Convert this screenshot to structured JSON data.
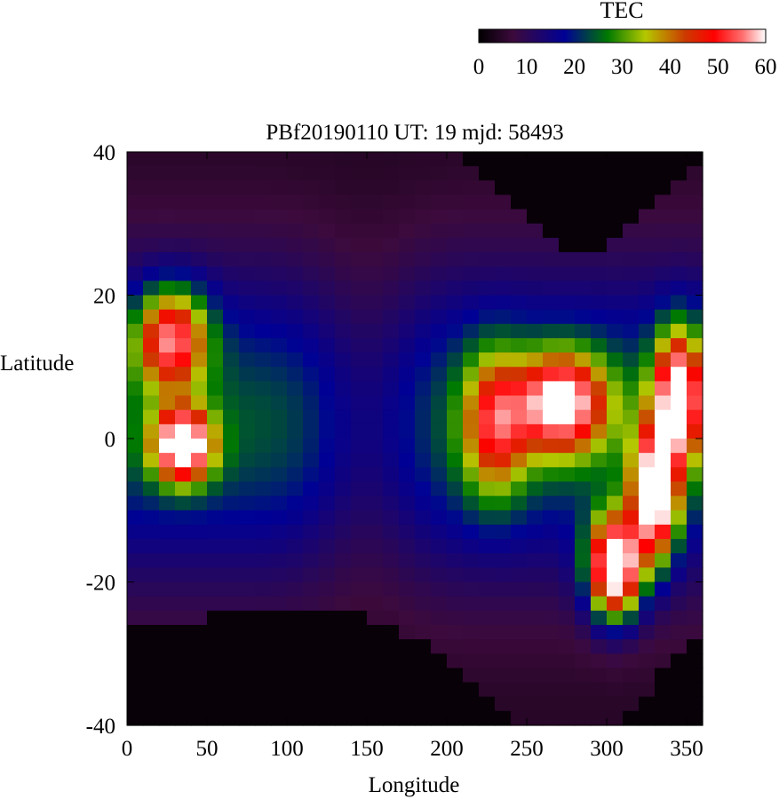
{
  "chart_data": {
    "type": "heatmap",
    "title": "PBf20190110  UT: 19  mjd: 58493",
    "xlabel": "Longitude",
    "ylabel": "Latitude",
    "xlim": [
      0,
      360
    ],
    "ylim": [
      -40,
      40
    ],
    "x_ticks": [
      "0",
      "50",
      "100",
      "150",
      "200",
      "250",
      "300",
      "350"
    ],
    "y_ticks": [
      "40",
      "20",
      "0",
      "-20",
      "-40"
    ],
    "grid": false,
    "colorbar": {
      "label": "TEC",
      "range": [
        0,
        60
      ],
      "ticks": [
        "0",
        "10",
        "20",
        "30",
        "40",
        "50",
        "60"
      ],
      "colors": [
        "#000000",
        "#3c0a3c",
        "#000096",
        "#007a00",
        "#b4c800",
        "#cc3a00",
        "#ff0000",
        "#ff7070",
        "#ffffff"
      ],
      "stops": [
        0,
        0.12,
        0.3,
        0.45,
        0.58,
        0.72,
        0.82,
        0.92,
        1.0
      ]
    },
    "grid_spec": {
      "lon_start": 0,
      "lon_end": 360,
      "lon_cells": 36,
      "lat_start": 40,
      "lat_end": -40,
      "lat_cells": 40
    },
    "features": [
      {
        "lon": 28,
        "lat": 14,
        "tec": 38,
        "sigma_lon": 22,
        "sigma_lat": 7
      },
      {
        "lon": 35,
        "lat": -1,
        "tec": 50,
        "sigma_lon": 18,
        "sigma_lat": 5
      },
      {
        "lon": 272,
        "lat": 5,
        "tec": 42,
        "sigma_lon": 28,
        "sigma_lat": 7
      },
      {
        "lon": 305,
        "lat": -18,
        "tec": 58,
        "sigma_lon": 16,
        "sigma_lat": 7
      },
      {
        "lon": 345,
        "lat": 6,
        "tec": 46,
        "sigma_lon": 15,
        "sigma_lat": 9
      },
      {
        "lon": 330,
        "lat": -8,
        "tec": 50,
        "sigma_lon": 14,
        "sigma_lat": 9
      },
      {
        "lon": 230,
        "lat": 2,
        "tec": 28,
        "sigma_lon": 20,
        "sigma_lat": 10
      }
    ],
    "dark_boundary": {
      "south": [
        [
          0,
          -26
        ],
        [
          50,
          -25
        ],
        [
          100,
          -23
        ],
        [
          150,
          -25
        ],
        [
          200,
          -30
        ],
        [
          250,
          -40
        ],
        [
          300,
          -40
        ],
        [
          320,
          -38
        ],
        [
          340,
          -30
        ],
        [
          360,
          -27
        ]
      ],
      "north_cap": [
        [
          200,
          40
        ],
        [
          240,
          33
        ],
        [
          270,
          26
        ],
        [
          300,
          26
        ],
        [
          330,
          33
        ],
        [
          360,
          40
        ]
      ]
    }
  }
}
